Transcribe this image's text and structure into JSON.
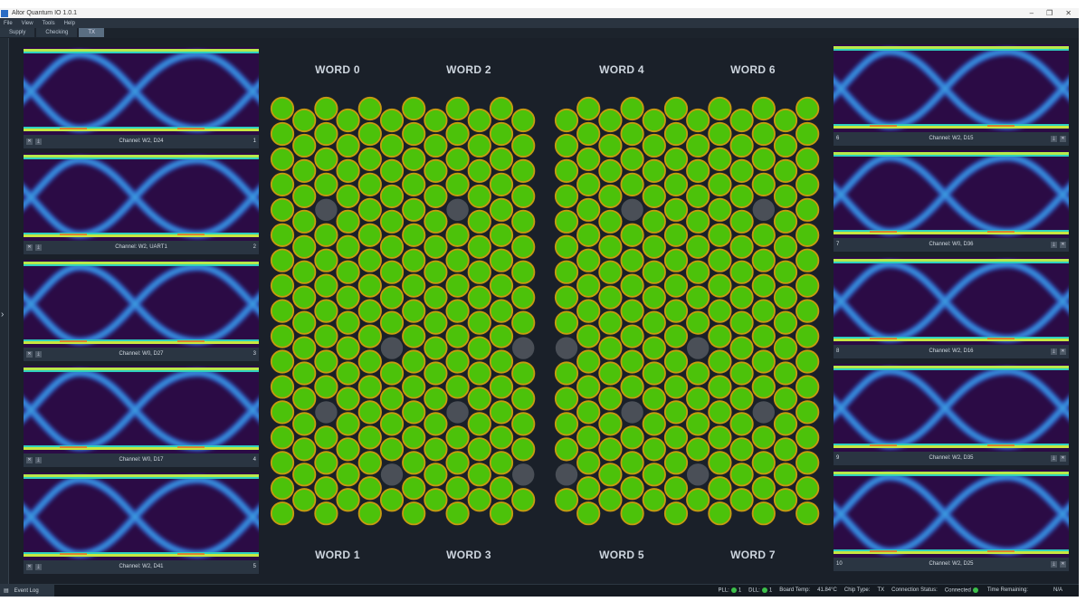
{
  "window": {
    "title": "Altor Quantum IO 1.0.1",
    "controls": {
      "minimize": "–",
      "maximize": "❐",
      "close": "✕"
    }
  },
  "menu": [
    "File",
    "View",
    "Tools",
    "Help"
  ],
  "tabs": [
    {
      "label": "Supply",
      "active": false
    },
    {
      "label": "Checking",
      "active": false
    },
    {
      "label": "TX",
      "active": true
    }
  ],
  "left_channels": [
    {
      "label": "Channel: W2, D24",
      "index": "1"
    },
    {
      "label": "Channel: W2, UART1",
      "index": "2"
    },
    {
      "label": "Channel: W0, D27",
      "index": "3"
    },
    {
      "label": "Channel: W0, D17",
      "index": "4"
    },
    {
      "label": "Channel: W2, D41",
      "index": "5"
    }
  ],
  "right_channels": [
    {
      "label": "Channel: W2, D15",
      "index": "6"
    },
    {
      "label": "Channel: W0, D36",
      "index": "7"
    },
    {
      "label": "Channel: W2, D16",
      "index": "8"
    },
    {
      "label": "Channel: W2, D35",
      "index": "9"
    },
    {
      "label": "Channel: W2, D25",
      "index": "10"
    }
  ],
  "panel_buttons": {
    "close": "✕",
    "export": "⤓"
  },
  "words": {
    "top": [
      "WORD 0",
      "WORD 2",
      "WORD 4",
      "WORD 6"
    ],
    "bottom": [
      "WORD 1",
      "WORD 3",
      "WORD 5",
      "WORD 7"
    ]
  },
  "pin_grid": {
    "colors": {
      "pass": "#4cc20a",
      "pass_border": "#c89a10",
      "inactive": "#4a4f57"
    },
    "columns_per_half": 12,
    "inactive_left": [
      [
        2,
        4
      ],
      [
        8,
        4
      ],
      [
        5,
        9
      ],
      [
        11,
        9
      ],
      [
        2,
        12
      ],
      [
        8,
        12
      ],
      [
        5,
        14
      ],
      [
        11,
        14
      ]
    ],
    "inactive_right": [
      [
        9,
        4
      ],
      [
        3,
        4
      ],
      [
        6,
        9
      ],
      [
        0,
        9
      ],
      [
        9,
        12
      ],
      [
        3,
        12
      ],
      [
        6,
        14
      ],
      [
        0,
        14
      ]
    ]
  },
  "statusbar": {
    "log_tab": "Event Log",
    "pll_label": "PLL:",
    "pll_value": "1",
    "dll_label": "DLL:",
    "dll_value": "1",
    "temp_label": "Board Temp:",
    "temp_value": "41.84°C",
    "chip_label": "Chip Type:",
    "chip_value": "TX",
    "conn_label": "Connection Status:",
    "conn_value": "Connected",
    "time_label": "Time Remaining:",
    "time_value": "N/A",
    "status_color": "#3cc04a"
  }
}
